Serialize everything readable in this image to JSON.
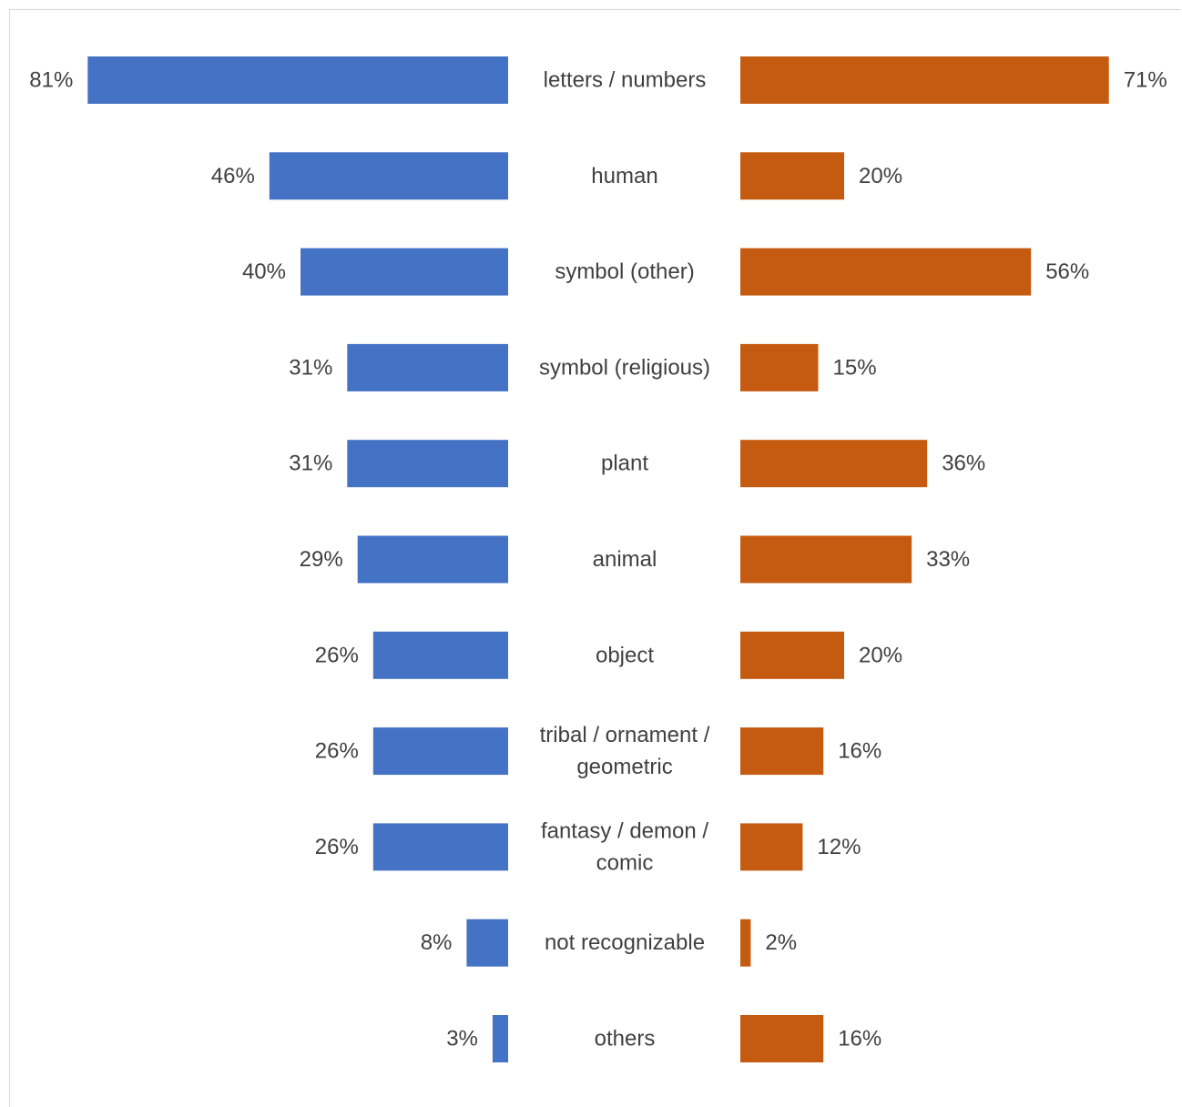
{
  "chart_data": {
    "type": "bar",
    "orientation": "horizontal",
    "layout": "butterfly",
    "categories": [
      [
        "letters / numbers"
      ],
      [
        "human"
      ],
      [
        "symbol (other)"
      ],
      [
        "symbol (religious)"
      ],
      [
        "plant"
      ],
      [
        "animal"
      ],
      [
        "object"
      ],
      [
        "tribal / ornament /",
        "geometric"
      ],
      [
        "fantasy / demon /",
        "comic"
      ],
      [
        "not recognizable"
      ],
      [
        "others"
      ]
    ],
    "series": [
      {
        "side": "left",
        "color": "#4472C4",
        "values": [
          81,
          46,
          40,
          31,
          31,
          29,
          26,
          26,
          26,
          8,
          3
        ],
        "labels": [
          "81%",
          "46%",
          "40%",
          "31%",
          "31%",
          "29%",
          "26%",
          "26%",
          "26%",
          "8%",
          "3%"
        ]
      },
      {
        "side": "right",
        "color": "#C55A11",
        "values": [
          71,
          20,
          56,
          15,
          36,
          33,
          20,
          16,
          12,
          2,
          16
        ],
        "labels": [
          "71%",
          "20%",
          "56%",
          "15%",
          "36%",
          "33%",
          "20%",
          "16%",
          "12%",
          "2%",
          "16%"
        ]
      }
    ],
    "unit": "%",
    "xlim": [
      0,
      100
    ],
    "grid": false,
    "legend": "none"
  }
}
